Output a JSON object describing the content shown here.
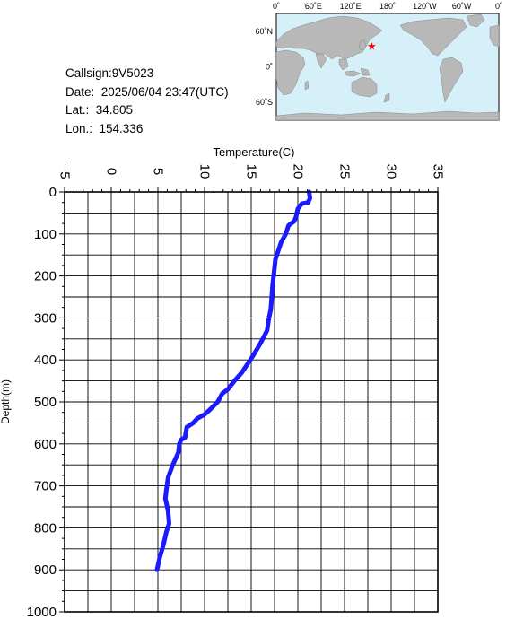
{
  "info": {
    "callsign": "Callsign:9V5023",
    "date": "Date:  2025/06/04 23:47(UTC)",
    "lat": "Lat.:  34.805",
    "lon": "Lon.:  154.336"
  },
  "map": {
    "top_labels": [
      "0˚",
      "60˚E",
      "120˚E",
      "180˚",
      "120˚W",
      "60˚W",
      "0˚"
    ],
    "lat_labels": [
      "60˚N",
      "0˚",
      "60˚S"
    ],
    "marker": {
      "lat": 34.805,
      "lon": 154.336,
      "symbol": "★"
    },
    "colors": {
      "ocean": "#d6f0fa",
      "land": "#b8b8b8",
      "marker": "#ff0000"
    }
  },
  "chart_data": {
    "type": "line",
    "xlabel": "Temperature(C)",
    "ylabel": "Depth(m)",
    "xlim": [
      -5,
      35
    ],
    "ylim": [
      1000,
      0
    ],
    "xticks": [
      "−5",
      "0",
      "5",
      "10",
      "15",
      "20",
      "25",
      "30",
      "35"
    ],
    "yticks": [
      "0",
      "100",
      "200",
      "300",
      "400",
      "500",
      "600",
      "700",
      "800",
      "900",
      "1000"
    ],
    "grid": true,
    "series": [
      {
        "color": "#1a1aff",
        "x": [
          21.2,
          21.3,
          21.1,
          20.4,
          20.0,
          19.8,
          19.6,
          19.0,
          18.7,
          18.2,
          17.9,
          17.6,
          17.5,
          17.4,
          17.3,
          17.2,
          17.1,
          16.9,
          16.7,
          16.0,
          15.2,
          14.6,
          14.0,
          13.2,
          12.5,
          11.9,
          11.4,
          10.5,
          10.0,
          9.2,
          8.8,
          8.1,
          7.9,
          7.5,
          7.3,
          7.2,
          6.6,
          6.1,
          5.9,
          5.8,
          6.1,
          6.2,
          5.9,
          5.6,
          5.2,
          4.9
        ],
        "y": [
          0,
          15,
          25,
          28,
          40,
          60,
          70,
          80,
          100,
          120,
          140,
          160,
          180,
          200,
          220,
          250,
          280,
          300,
          330,
          360,
          390,
          410,
          430,
          450,
          470,
          480,
          500,
          520,
          530,
          540,
          550,
          560,
          585,
          590,
          600,
          620,
          650,
          680,
          710,
          730,
          760,
          790,
          810,
          840,
          870,
          900
        ]
      }
    ]
  }
}
